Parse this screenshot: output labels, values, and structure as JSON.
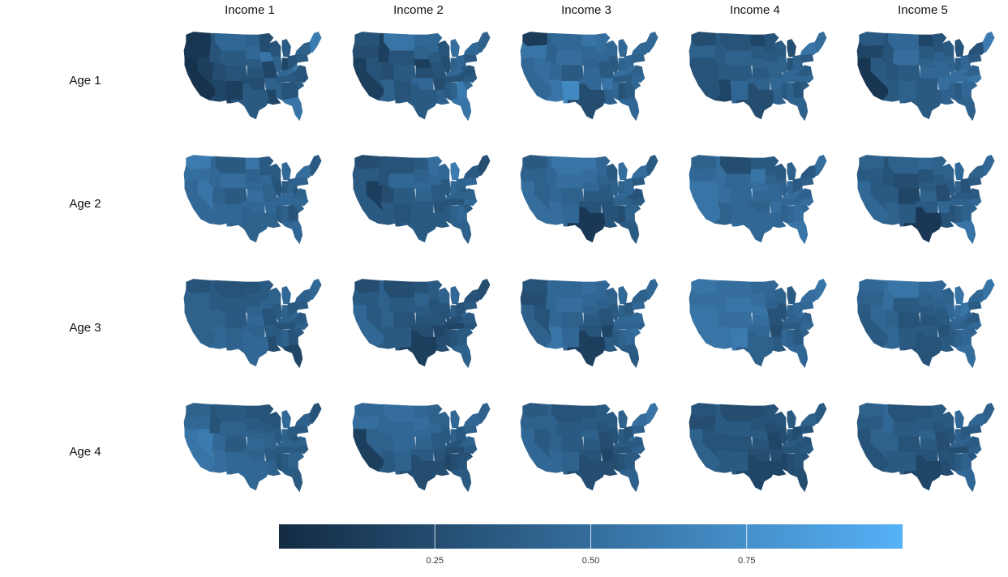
{
  "chart_data": {
    "type": "heatmap",
    "subtype": "faceted choropleth map grid (contiguous US states)",
    "title": "",
    "column_facets": [
      "Income 1",
      "Income 2",
      "Income 3",
      "Income 4",
      "Income 5"
    ],
    "row_facets": [
      "Age 1",
      "Age 2",
      "Age 3",
      "Age 4"
    ],
    "legend": {
      "position": "bottom",
      "type": "colorbar",
      "range": [
        0,
        1
      ],
      "ticks": [
        0.25,
        0.5,
        0.75
      ],
      "tick_labels": [
        "0.25",
        "0.50",
        "0.75"
      ],
      "low_color": "#132B43",
      "high_color": "#56B1F7"
    },
    "regions": [
      {
        "name": "WA",
        "id": "wa"
      },
      {
        "name": "OR",
        "id": "or"
      },
      {
        "name": "CA",
        "id": "ca"
      },
      {
        "name": "ID",
        "id": "id"
      },
      {
        "name": "NV",
        "id": "nv"
      },
      {
        "name": "MT",
        "id": "mt"
      },
      {
        "name": "WY",
        "id": "wy"
      },
      {
        "name": "UT",
        "id": "ut"
      },
      {
        "name": "AZ",
        "id": "az"
      },
      {
        "name": "CO",
        "id": "co"
      },
      {
        "name": "NM",
        "id": "nm"
      },
      {
        "name": "ND",
        "id": "nd"
      },
      {
        "name": "SD",
        "id": "sd"
      },
      {
        "name": "NE",
        "id": "ne"
      },
      {
        "name": "KS",
        "id": "ks"
      },
      {
        "name": "OK",
        "id": "ok"
      },
      {
        "name": "TX",
        "id": "tx"
      },
      {
        "name": "MN",
        "id": "mn"
      },
      {
        "name": "IA",
        "id": "ia"
      },
      {
        "name": "MO",
        "id": "mo"
      },
      {
        "name": "AR",
        "id": "ar"
      },
      {
        "name": "LA",
        "id": "la"
      },
      {
        "name": "WI",
        "id": "wi"
      },
      {
        "name": "IL",
        "id": "il"
      },
      {
        "name": "MI",
        "id": "mi"
      },
      {
        "name": "IN",
        "id": "in"
      },
      {
        "name": "OH",
        "id": "oh"
      },
      {
        "name": "KY",
        "id": "ky"
      },
      {
        "name": "TN",
        "id": "tn"
      },
      {
        "name": "MS",
        "id": "ms"
      },
      {
        "name": "AL",
        "id": "al"
      },
      {
        "name": "GA",
        "id": "ga"
      },
      {
        "name": "FL",
        "id": "fl"
      },
      {
        "name": "SC",
        "id": "sc"
      },
      {
        "name": "NC",
        "id": "nc"
      },
      {
        "name": "VA",
        "id": "va"
      },
      {
        "name": "WV",
        "id": "wv"
      },
      {
        "name": "PA",
        "id": "pa"
      },
      {
        "name": "NY",
        "id": "ny"
      },
      {
        "name": "NE-states",
        "id": "ne6"
      }
    ],
    "values": [
      [
        [
          0.08,
          0.1,
          0.05,
          0.3,
          0.15,
          0.45,
          0.35,
          0.25,
          0.2,
          0.3,
          0.15,
          0.4,
          0.45,
          0.35,
          0.3,
          0.25,
          0.35,
          0.25,
          0.55,
          0.2,
          0.4,
          0.2,
          0.3,
          0.4,
          0.35,
          0.2,
          0.3,
          0.45,
          0.35,
          0.4,
          0.3,
          0.3,
          0.55,
          0.35,
          0.3,
          0.3,
          0.55,
          0.35,
          0.4,
          0.6
        ],
        [
          0.3,
          0.25,
          0.15,
          0.15,
          0.3,
          0.55,
          0.3,
          0.25,
          0.4,
          0.35,
          0.3,
          0.45,
          0.4,
          0.15,
          0.25,
          0.45,
          0.35,
          0.45,
          0.35,
          0.3,
          0.25,
          0.4,
          0.3,
          0.25,
          0.5,
          0.4,
          0.45,
          0.45,
          0.3,
          0.35,
          0.4,
          0.6,
          0.55,
          0.45,
          0.35,
          0.3,
          0.35,
          0.35,
          0.45,
          0.4
        ],
        [
          0.12,
          0.55,
          0.45,
          0.4,
          0.5,
          0.45,
          0.5,
          0.45,
          0.55,
          0.35,
          0.7,
          0.55,
          0.45,
          0.4,
          0.45,
          0.45,
          0.25,
          0.5,
          0.45,
          0.35,
          0.55,
          0.4,
          0.45,
          0.35,
          0.45,
          0.4,
          0.45,
          0.5,
          0.35,
          0.45,
          0.3,
          0.35,
          0.45,
          0.45,
          0.45,
          0.4,
          0.5,
          0.4,
          0.45,
          0.45
        ],
        [
          0.25,
          0.4,
          0.3,
          0.35,
          0.3,
          0.3,
          0.4,
          0.35,
          0.2,
          0.35,
          0.45,
          0.2,
          0.35,
          0.4,
          0.35,
          0.4,
          0.25,
          0.3,
          0.35,
          0.4,
          0.45,
          0.4,
          0.35,
          0.4,
          0.25,
          0.3,
          0.4,
          0.45,
          0.45,
          0.35,
          0.4,
          0.3,
          0.4,
          0.35,
          0.45,
          0.35,
          0.4,
          0.35,
          0.55,
          0.5
        ],
        [
          0.35,
          0.2,
          0.08,
          0.3,
          0.35,
          0.45,
          0.5,
          0.3,
          0.35,
          0.35,
          0.4,
          0.2,
          0.35,
          0.4,
          0.45,
          0.35,
          0.35,
          0.3,
          0.4,
          0.45,
          0.5,
          0.4,
          0.35,
          0.4,
          0.3,
          0.35,
          0.45,
          0.5,
          0.5,
          0.4,
          0.35,
          0.45,
          0.4,
          0.45,
          0.55,
          0.4,
          0.45,
          0.35,
          0.3,
          0.6
        ]
      ],
      [
        [
          0.6,
          0.5,
          0.45,
          0.45,
          0.55,
          0.35,
          0.5,
          0.4,
          0.45,
          0.35,
          0.45,
          0.55,
          0.4,
          0.45,
          0.5,
          0.45,
          0.4,
          0.35,
          0.45,
          0.4,
          0.45,
          0.4,
          0.35,
          0.3,
          0.45,
          0.35,
          0.4,
          0.45,
          0.45,
          0.35,
          0.4,
          0.3,
          0.45,
          0.4,
          0.45,
          0.4,
          0.3,
          0.4,
          0.5,
          0.35
        ],
        [
          0.25,
          0.35,
          0.35,
          0.3,
          0.15,
          0.3,
          0.45,
          0.25,
          0.35,
          0.35,
          0.3,
          0.35,
          0.4,
          0.45,
          0.4,
          0.35,
          0.35,
          0.5,
          0.45,
          0.35,
          0.3,
          0.35,
          0.45,
          0.35,
          0.6,
          0.45,
          0.4,
          0.4,
          0.3,
          0.35,
          0.4,
          0.45,
          0.4,
          0.35,
          0.45,
          0.4,
          0.35,
          0.45,
          0.35,
          0.25
        ],
        [
          0.35,
          0.4,
          0.5,
          0.45,
          0.4,
          0.55,
          0.5,
          0.45,
          0.5,
          0.4,
          0.45,
          0.55,
          0.5,
          0.45,
          0.35,
          0.3,
          0.1,
          0.45,
          0.4,
          0.35,
          0.3,
          0.3,
          0.35,
          0.4,
          0.5,
          0.4,
          0.45,
          0.45,
          0.4,
          0.3,
          0.25,
          0.4,
          0.35,
          0.4,
          0.35,
          0.3,
          0.45,
          0.35,
          0.5,
          0.35
        ],
        [
          0.4,
          0.45,
          0.55,
          0.5,
          0.55,
          0.25,
          0.45,
          0.5,
          0.4,
          0.45,
          0.45,
          0.35,
          0.55,
          0.5,
          0.45,
          0.4,
          0.45,
          0.35,
          0.4,
          0.45,
          0.5,
          0.45,
          0.35,
          0.4,
          0.4,
          0.45,
          0.35,
          0.5,
          0.45,
          0.4,
          0.45,
          0.5,
          0.55,
          0.45,
          0.5,
          0.4,
          0.45,
          0.4,
          0.35,
          0.5
        ],
        [
          0.4,
          0.35,
          0.45,
          0.3,
          0.35,
          0.4,
          0.25,
          0.35,
          0.4,
          0.2,
          0.35,
          0.45,
          0.3,
          0.35,
          0.4,
          0.35,
          0.1,
          0.4,
          0.35,
          0.25,
          0.45,
          0.3,
          0.4,
          0.35,
          0.45,
          0.4,
          0.3,
          0.35,
          0.4,
          0.3,
          0.35,
          0.4,
          0.55,
          0.4,
          0.45,
          0.35,
          0.3,
          0.35,
          0.4,
          0.45
        ]
      ],
      [
        [
          0.3,
          0.4,
          0.4,
          0.35,
          0.4,
          0.3,
          0.35,
          0.4,
          0.45,
          0.35,
          0.4,
          0.3,
          0.35,
          0.4,
          0.45,
          0.4,
          0.45,
          0.35,
          0.4,
          0.3,
          0.35,
          0.25,
          0.4,
          0.35,
          0.45,
          0.4,
          0.35,
          0.4,
          0.3,
          0.35,
          0.4,
          0.3,
          0.2,
          0.35,
          0.4,
          0.35,
          0.45,
          0.35,
          0.4,
          0.45
        ],
        [
          0.25,
          0.35,
          0.45,
          0.4,
          0.35,
          0.25,
          0.35,
          0.4,
          0.35,
          0.3,
          0.35,
          0.3,
          0.4,
          0.35,
          0.3,
          0.25,
          0.15,
          0.35,
          0.3,
          0.3,
          0.2,
          0.25,
          0.4,
          0.3,
          0.45,
          0.35,
          0.3,
          0.25,
          0.2,
          0.25,
          0.3,
          0.35,
          0.4,
          0.35,
          0.3,
          0.35,
          0.4,
          0.35,
          0.3,
          0.25
        ],
        [
          0.3,
          0.25,
          0.4,
          0.45,
          0.3,
          0.45,
          0.5,
          0.45,
          0.55,
          0.4,
          0.45,
          0.5,
          0.45,
          0.4,
          0.35,
          0.3,
          0.15,
          0.45,
          0.4,
          0.3,
          0.2,
          0.35,
          0.4,
          0.35,
          0.45,
          0.4,
          0.35,
          0.45,
          0.4,
          0.35,
          0.4,
          0.45,
          0.35,
          0.5,
          0.4,
          0.45,
          0.4,
          0.45,
          0.4,
          0.45
        ],
        [
          0.55,
          0.5,
          0.55,
          0.5,
          0.55,
          0.5,
          0.55,
          0.5,
          0.55,
          0.5,
          0.6,
          0.45,
          0.5,
          0.55,
          0.5,
          0.45,
          0.4,
          0.45,
          0.4,
          0.3,
          0.25,
          0.35,
          0.4,
          0.3,
          0.35,
          0.4,
          0.45,
          0.4,
          0.35,
          0.45,
          0.4,
          0.35,
          0.45,
          0.4,
          0.45,
          0.4,
          0.5,
          0.45,
          0.5,
          0.55
        ],
        [
          0.45,
          0.4,
          0.35,
          0.5,
          0.45,
          0.55,
          0.35,
          0.4,
          0.45,
          0.3,
          0.35,
          0.45,
          0.4,
          0.35,
          0.3,
          0.35,
          0.3,
          0.45,
          0.4,
          0.35,
          0.3,
          0.35,
          0.4,
          0.45,
          0.55,
          0.5,
          0.55,
          0.45,
          0.4,
          0.35,
          0.4,
          0.45,
          0.5,
          0.4,
          0.45,
          0.35,
          0.4,
          0.35,
          0.45,
          0.55
        ]
      ],
      [
        [
          0.4,
          0.45,
          0.55,
          0.3,
          0.6,
          0.35,
          0.4,
          0.45,
          0.5,
          0.35,
          0.45,
          0.3,
          0.35,
          0.4,
          0.45,
          0.4,
          0.45,
          0.3,
          0.35,
          0.4,
          0.35,
          0.4,
          0.3,
          0.35,
          0.45,
          0.4,
          0.35,
          0.4,
          0.35,
          0.3,
          0.35,
          0.4,
          0.35,
          0.4,
          0.35,
          0.4,
          0.3,
          0.35,
          0.4,
          0.3
        ],
        [
          0.45,
          0.5,
          0.15,
          0.45,
          0.4,
          0.5,
          0.45,
          0.4,
          0.35,
          0.45,
          0.4,
          0.45,
          0.5,
          0.45,
          0.4,
          0.35,
          0.25,
          0.4,
          0.45,
          0.35,
          0.3,
          0.25,
          0.4,
          0.35,
          0.45,
          0.4,
          0.35,
          0.3,
          0.25,
          0.2,
          0.25,
          0.3,
          0.35,
          0.3,
          0.35,
          0.4,
          0.35,
          0.4,
          0.45,
          0.4
        ],
        [
          0.35,
          0.4,
          0.45,
          0.4,
          0.35,
          0.3,
          0.35,
          0.4,
          0.45,
          0.35,
          0.4,
          0.3,
          0.35,
          0.4,
          0.35,
          0.3,
          0.25,
          0.35,
          0.3,
          0.25,
          0.2,
          0.25,
          0.35,
          0.3,
          0.4,
          0.35,
          0.3,
          0.35,
          0.3,
          0.25,
          0.3,
          0.35,
          0.4,
          0.35,
          0.4,
          0.35,
          0.45,
          0.4,
          0.5,
          0.55
        ],
        [
          0.3,
          0.25,
          0.4,
          0.35,
          0.3,
          0.25,
          0.35,
          0.3,
          0.35,
          0.3,
          0.35,
          0.25,
          0.3,
          0.35,
          0.3,
          0.25,
          0.2,
          0.3,
          0.25,
          0.2,
          0.25,
          0.2,
          0.3,
          0.25,
          0.35,
          0.3,
          0.25,
          0.35,
          0.3,
          0.2,
          0.25,
          0.3,
          0.25,
          0.3,
          0.35,
          0.3,
          0.35,
          0.3,
          0.4,
          0.35
        ],
        [
          0.4,
          0.35,
          0.3,
          0.45,
          0.4,
          0.3,
          0.35,
          0.4,
          0.35,
          0.3,
          0.35,
          0.3,
          0.35,
          0.4,
          0.35,
          0.3,
          0.2,
          0.35,
          0.3,
          0.25,
          0.3,
          0.25,
          0.35,
          0.3,
          0.45,
          0.4,
          0.35,
          0.4,
          0.25,
          0.3,
          0.35,
          0.4,
          0.45,
          0.35,
          0.4,
          0.35,
          0.4,
          0.35,
          0.45,
          0.4
        ]
      ]
    ]
  }
}
